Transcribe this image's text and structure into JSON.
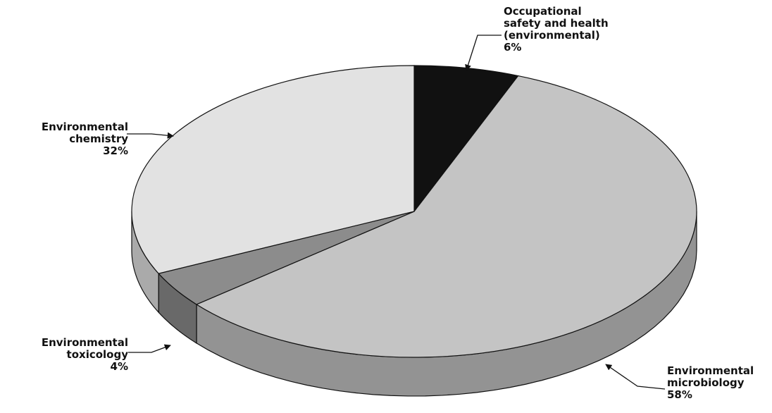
{
  "chart_data": {
    "type": "pie",
    "categories": [
      "Occupational\nsafety and health\n(environmental)",
      "Environmental\nmicrobiology",
      "Environmental\ntoxicology",
      "Environmental\nchemistry"
    ],
    "values": [
      6,
      58,
      4,
      32
    ],
    "value_labels": [
      "6%",
      "58%",
      "4%",
      "32%"
    ],
    "colors": [
      "#111111",
      "#c4c4c4",
      "#8c8c8c",
      "#e2e2e2"
    ]
  }
}
